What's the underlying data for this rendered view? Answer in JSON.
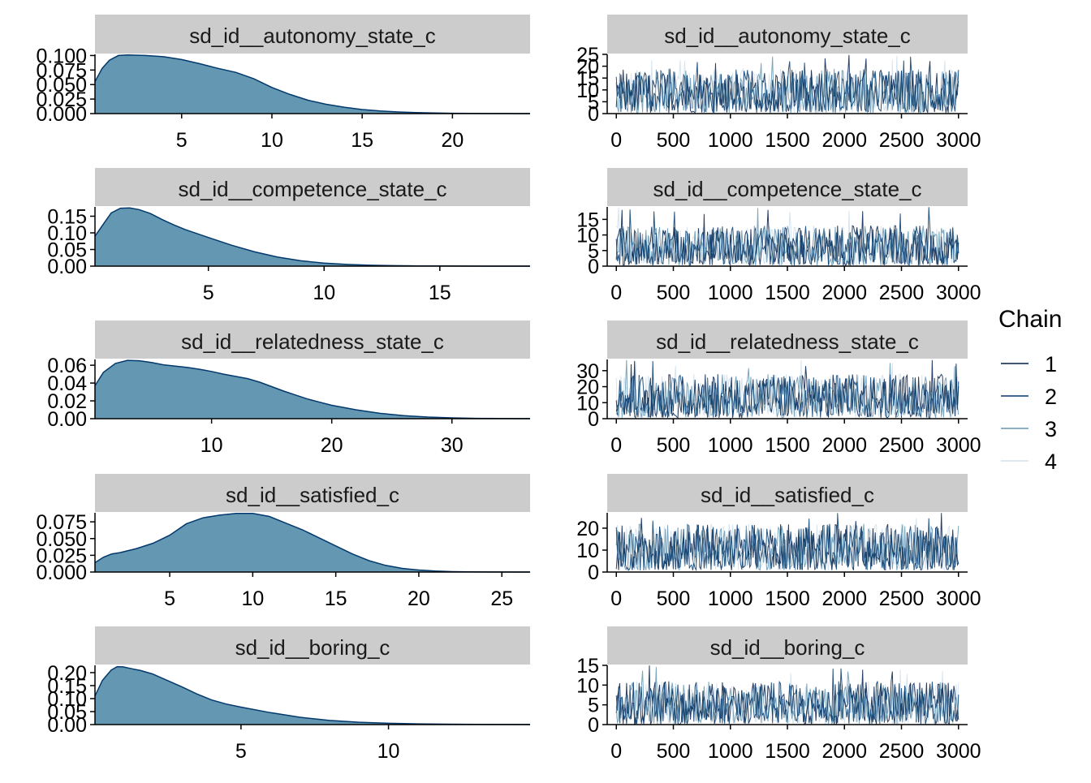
{
  "chart_data": [
    {
      "type": "area",
      "panel": "density",
      "title": "sd_id__autonomy_state_c",
      "xlim": [
        0.2,
        24.3
      ],
      "ylim": [
        0,
        0.102
      ],
      "x_ticks": [
        5,
        10,
        15,
        20
      ],
      "y_ticks": [
        "0.000",
        "0.025",
        "0.050",
        "0.075",
        "0.100"
      ],
      "x": [
        0.2,
        0.6,
        1,
        1.5,
        2,
        3,
        4,
        5,
        6,
        7,
        8,
        9,
        10,
        11,
        12,
        13,
        14,
        15,
        16,
        17,
        18,
        19,
        20,
        21,
        22,
        23,
        24.3
      ],
      "y": [
        0.055,
        0.078,
        0.092,
        0.1,
        0.101,
        0.1,
        0.098,
        0.093,
        0.086,
        0.078,
        0.071,
        0.06,
        0.045,
        0.033,
        0.023,
        0.016,
        0.011,
        0.007,
        0.0045,
        0.0028,
        0.0017,
        0.001,
        0.0006,
        0.0003,
        0.0002,
        0.0001,
        5e-05
      ]
    },
    {
      "type": "line",
      "panel": "trace",
      "title": "sd_id__autonomy_state_c",
      "xlim": [
        -80,
        3080
      ],
      "ylim": [
        0,
        25
      ],
      "x_ticks": [
        0,
        500,
        1000,
        1500,
        2000,
        2500,
        3000
      ],
      "y_ticks": [
        0,
        5,
        10,
        15,
        20,
        25
      ],
      "summary": {
        "iterations": 3000,
        "typical_low": 0.3,
        "typical_high": 19,
        "max": 25
      }
    },
    {
      "type": "area",
      "panel": "density",
      "title": "sd_id__competence_state_c",
      "xlim": [
        0.1,
        18.9
      ],
      "ylim": [
        0,
        0.178
      ],
      "x_ticks": [
        5,
        10,
        15
      ],
      "y_ticks": [
        "0.00",
        "0.05",
        "0.10",
        "0.15"
      ],
      "x": [
        0.1,
        0.5,
        0.8,
        1.2,
        1.6,
        2,
        2.5,
        3,
        3.5,
        4,
        5,
        6,
        7,
        8,
        9,
        10,
        11,
        12,
        13,
        14,
        15,
        16,
        17,
        18.9
      ],
      "y": [
        0.09,
        0.13,
        0.16,
        0.174,
        0.175,
        0.17,
        0.158,
        0.14,
        0.124,
        0.11,
        0.086,
        0.063,
        0.043,
        0.027,
        0.016,
        0.009,
        0.005,
        0.0027,
        0.0015,
        0.0008,
        0.0004,
        0.0002,
        0.0001,
        5e-05
      ]
    },
    {
      "type": "line",
      "panel": "trace",
      "title": "sd_id__competence_state_c",
      "xlim": [
        -80,
        3080
      ],
      "ylim": [
        0,
        19
      ],
      "x_ticks": [
        0,
        500,
        1000,
        1500,
        2000,
        2500,
        3000
      ],
      "y_ticks": [
        0,
        5,
        10,
        15
      ],
      "summary": {
        "iterations": 3000,
        "typical_low": 0.2,
        "typical_high": 13,
        "max": 19
      }
    },
    {
      "type": "area",
      "panel": "density",
      "title": "sd_id__relatedness_state_c",
      "xlim": [
        0.3,
        36.5
      ],
      "ylim": [
        0,
        0.0665
      ],
      "x_ticks": [
        10,
        20,
        30
      ],
      "y_ticks": [
        "0.00",
        "0.02",
        "0.04",
        "0.06"
      ],
      "x": [
        0.3,
        1,
        2,
        3,
        4,
        5,
        6,
        7,
        8,
        9,
        10,
        11,
        12,
        13,
        14,
        15,
        16,
        17,
        18,
        19,
        20,
        22,
        24,
        26,
        28,
        30,
        32,
        34,
        36.5
      ],
      "y": [
        0.037,
        0.052,
        0.062,
        0.0655,
        0.065,
        0.063,
        0.0605,
        0.059,
        0.0575,
        0.0555,
        0.053,
        0.05,
        0.0475,
        0.045,
        0.041,
        0.036,
        0.031,
        0.0265,
        0.022,
        0.0185,
        0.015,
        0.01,
        0.006,
        0.0034,
        0.0018,
        0.0009,
        0.0004,
        0.0002,
        0.0001
      ]
    },
    {
      "type": "line",
      "panel": "trace",
      "title": "sd_id__relatedness_state_c",
      "xlim": [
        -80,
        3080
      ],
      "ylim": [
        0,
        37
      ],
      "x_ticks": [
        0,
        500,
        1000,
        1500,
        2000,
        2500,
        3000
      ],
      "y_ticks": [
        0,
        10,
        20,
        30
      ],
      "summary": {
        "iterations": 3000,
        "typical_low": 0.5,
        "typical_high": 28,
        "max": 37
      }
    },
    {
      "type": "area",
      "panel": "density",
      "title": "sd_id__satisfied_c",
      "xlim": [
        0.5,
        26.7
      ],
      "ylim": [
        0,
        0.0885
      ],
      "x_ticks": [
        5,
        10,
        15,
        20,
        25
      ],
      "y_ticks": [
        "0.000",
        "0.025",
        "0.050",
        "0.075"
      ],
      "x": [
        0.5,
        1,
        1.5,
        2,
        3,
        4,
        5,
        6,
        7,
        8,
        9,
        10,
        11,
        12,
        13,
        14,
        15,
        16,
        17,
        18,
        19,
        20,
        21,
        22,
        23,
        24,
        26.7
      ],
      "y": [
        0.014,
        0.022,
        0.027,
        0.029,
        0.035,
        0.043,
        0.055,
        0.072,
        0.081,
        0.085,
        0.0875,
        0.0875,
        0.083,
        0.073,
        0.063,
        0.051,
        0.039,
        0.027,
        0.017,
        0.01,
        0.0055,
        0.003,
        0.0014,
        0.0006,
        0.0002,
        0.0001,
        2e-05
      ]
    },
    {
      "type": "line",
      "panel": "trace",
      "title": "sd_id__satisfied_c",
      "xlim": [
        -80,
        3080
      ],
      "ylim": [
        0,
        27
      ],
      "x_ticks": [
        0,
        500,
        1000,
        1500,
        2000,
        2500,
        3000
      ],
      "y_ticks": [
        0,
        10,
        20
      ],
      "summary": {
        "iterations": 3000,
        "typical_low": 0.8,
        "typical_high": 22,
        "max": 27
      }
    },
    {
      "type": "area",
      "panel": "density",
      "title": "sd_id__boring_c",
      "xlim": [
        0.05,
        14.8
      ],
      "ylim": [
        0,
        0.228
      ],
      "x_ticks": [
        5,
        10
      ],
      "y_ticks": [
        "0.00",
        "0.05",
        "0.10",
        "0.15",
        "0.20"
      ],
      "x": [
        0.05,
        0.3,
        0.6,
        0.8,
        1,
        1.3,
        1.6,
        2,
        2.5,
        3,
        3.5,
        4,
        4.5,
        5,
        6,
        7,
        8,
        9,
        10,
        11,
        12,
        13,
        14.8
      ],
      "y": [
        0.11,
        0.17,
        0.21,
        0.223,
        0.222,
        0.215,
        0.208,
        0.195,
        0.17,
        0.145,
        0.118,
        0.095,
        0.079,
        0.067,
        0.046,
        0.028,
        0.016,
        0.009,
        0.005,
        0.0028,
        0.0015,
        0.0008,
        0.0003
      ]
    },
    {
      "type": "line",
      "panel": "trace",
      "title": "sd_id__boring_c",
      "xlim": [
        -80,
        3080
      ],
      "ylim": [
        0,
        15
      ],
      "x_ticks": [
        0,
        500,
        1000,
        1500,
        2000,
        2500,
        3000
      ],
      "y_ticks": [
        0,
        5,
        10,
        15
      ],
      "summary": {
        "iterations": 3000,
        "typical_low": 0.1,
        "typical_high": 11,
        "max": 15
      }
    }
  ],
  "legend": {
    "title": "Chain",
    "position": "right",
    "items": [
      {
        "label": "1",
        "color": "#011f4b"
      },
      {
        "label": "2",
        "color": "#03396c"
      },
      {
        "label": "3",
        "color": "#6497b1"
      },
      {
        "label": "4",
        "color": "#d0e1ef"
      }
    ]
  },
  "colors": {
    "density_fill": "#6497b1",
    "density_line": "#03396c",
    "strip_background": "#cccccc",
    "axis": "#000000"
  }
}
